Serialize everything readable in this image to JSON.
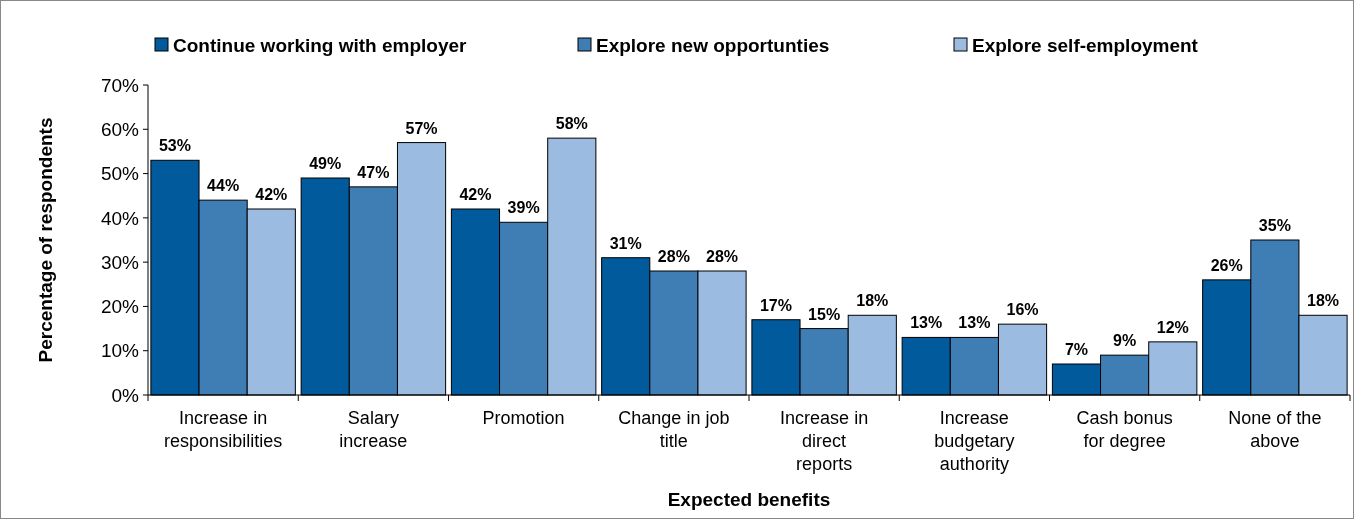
{
  "chart_data": {
    "type": "bar",
    "xlabel": "Expected benefits",
    "ylabel": "Percentage of respondents",
    "categories": [
      "Increase in responsibilities",
      "Salary increase",
      "Promotion",
      "Change in job title",
      "Increase in direct reports",
      "Increase budgetary authority",
      "Cash bonus for degree",
      "None of the above"
    ],
    "series": [
      {
        "name": "Continue working with employer",
        "color": "#005a9c",
        "values": [
          53,
          49,
          42,
          31,
          17,
          13,
          7,
          26
        ],
        "value_labels": [
          "53%",
          "49%",
          "42%",
          "31%",
          "17%",
          "13%",
          "7%",
          "26%"
        ]
      },
      {
        "name": "Explore new opportunties",
        "color": "#3f7db5",
        "values": [
          44,
          47,
          39,
          28,
          15,
          13,
          9,
          35
        ],
        "value_labels": [
          "44%",
          "47%",
          "39%",
          "28%",
          "15%",
          "13%",
          "9%",
          "35%"
        ]
      },
      {
        "name": "Explore self-employment",
        "color": "#9bbbe0",
        "values": [
          42,
          57,
          58,
          28,
          18,
          16,
          12,
          18
        ],
        "value_labels": [
          "42%",
          "57%",
          "58%",
          "28%",
          "18%",
          "16%",
          "12%",
          "18%"
        ]
      }
    ],
    "ylim": [
      0,
      70
    ],
    "yticks": [
      {
        "value": 0,
        "label": "0%"
      },
      {
        "value": 10,
        "label": "10%"
      },
      {
        "value": 20,
        "label": "20%"
      },
      {
        "value": 30,
        "label": "30%"
      },
      {
        "value": 40,
        "label": "40%"
      },
      {
        "value": 50,
        "label": "50%"
      },
      {
        "value": 60,
        "label": "60%"
      },
      {
        "value": 70,
        "label": "70%"
      }
    ],
    "legend": "top",
    "grid": false
  }
}
